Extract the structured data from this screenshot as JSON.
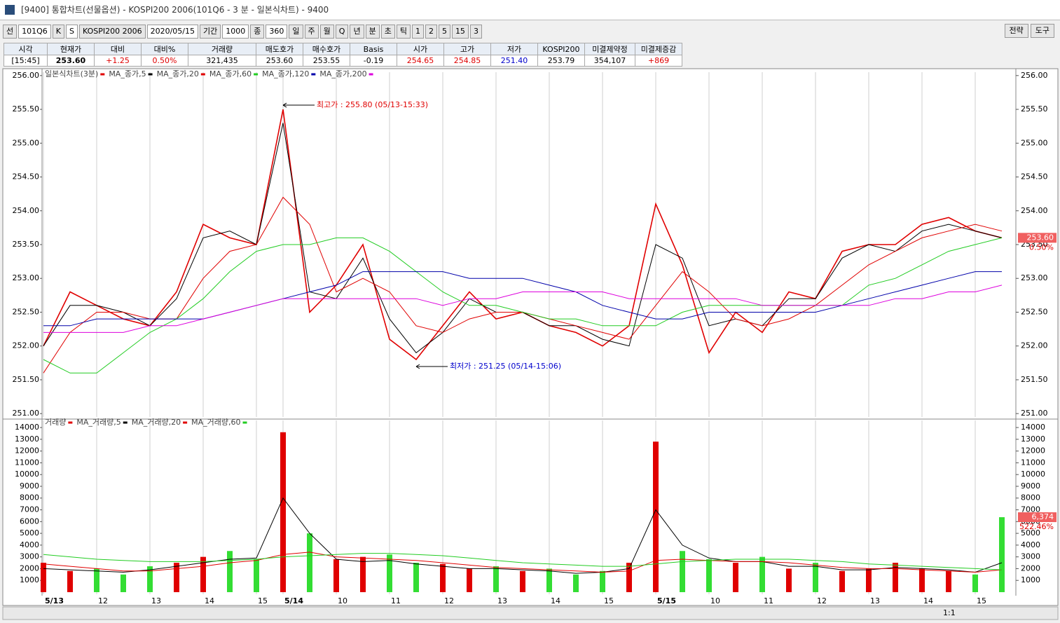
{
  "window_title": "[9400] 통합차트(선물옵션) - KOSPI200 2006(101Q6 - 3 분 - 일본식차트) - 9400",
  "toolbar": {
    "items": [
      "선",
      "101Q6",
      "K",
      "S",
      "KOSPI200 2006",
      "2020/05/15",
      "기간",
      "1000",
      "종",
      "360"
    ],
    "periods": [
      "일",
      "주",
      "월",
      "Q",
      "년",
      "분",
      "초",
      "틱",
      "1",
      "2",
      "5",
      "15",
      "3"
    ],
    "right": [
      "전략",
      "도구"
    ]
  },
  "quote": {
    "headers": [
      "시각",
      "현재가",
      "대비",
      "대비%",
      "거래량",
      "매도호가",
      "매수호가",
      "Basis",
      "시가",
      "고가",
      "저가",
      "KOSPI200",
      "미결제약정",
      "미결제증감"
    ],
    "values": [
      "[15:45]",
      "253.60",
      "+1.25",
      "0.50%",
      "321,435",
      "253.60",
      "253.55",
      "-0.19",
      "254.65",
      "254.85",
      "251.40",
      "253.79",
      "354,107",
      "+869"
    ]
  },
  "footer": {
    "zoom": "1:1"
  },
  "chart_data": [
    {
      "type": "line",
      "ylim": [
        250.95,
        256.05
      ],
      "yticks": [
        {
          "value": 251,
          "label": "251.00"
        },
        {
          "value": 251.5,
          "label": "251.50"
        },
        {
          "value": 252,
          "label": "252.00"
        },
        {
          "value": 252.5,
          "label": "252.50"
        },
        {
          "value": 253,
          "label": "253.00"
        },
        {
          "value": 253.5,
          "label": "253.50"
        },
        {
          "value": 254,
          "label": "254.00"
        },
        {
          "value": 254.5,
          "label": "254.50"
        },
        {
          "value": 255,
          "label": "255.00"
        },
        {
          "value": 255.5,
          "label": "255.50"
        },
        {
          "value": 256,
          "label": "256.00"
        }
      ],
      "series": [
        {
          "name": "일본식차트(3분)",
          "color": "#e00000",
          "values": [
            252.0,
            252.8,
            252.6,
            252.4,
            252.3,
            252.8,
            253.8,
            253.6,
            253.5,
            255.5,
            252.5,
            252.9,
            253.5,
            252.1,
            251.8,
            252.3,
            252.8,
            252.4,
            252.5,
            252.3,
            252.2,
            252.0,
            252.3,
            254.1,
            253.2,
            251.9,
            252.5,
            252.2,
            252.8,
            252.7,
            253.4,
            253.5,
            253.5,
            253.8,
            253.9,
            253.7,
            253.6
          ]
        },
        {
          "name": "MA_종가,5",
          "color": "#000000",
          "values": [
            252.0,
            252.6,
            252.6,
            252.5,
            252.3,
            252.7,
            253.6,
            253.7,
            253.5,
            255.3,
            252.8,
            252.7,
            253.3,
            252.4,
            251.9,
            252.2,
            252.7,
            252.5,
            252.5,
            252.3,
            252.3,
            252.1,
            252.0,
            253.5,
            253.3,
            252.3,
            252.4,
            252.3,
            252.7,
            252.7,
            253.3,
            253.5,
            253.4,
            253.7,
            253.8,
            253.7,
            253.6
          ]
        },
        {
          "name": "MA_종가,20",
          "color": "#e00000",
          "values": [
            251.6,
            252.2,
            252.5,
            252.5,
            252.4,
            252.4,
            253.0,
            253.4,
            253.5,
            254.2,
            253.8,
            252.8,
            253.0,
            252.8,
            252.3,
            252.2,
            252.4,
            252.5,
            252.5,
            252.4,
            252.3,
            252.2,
            252.1,
            252.6,
            253.1,
            252.8,
            252.4,
            252.3,
            252.4,
            252.6,
            252.9,
            253.2,
            253.4,
            253.6,
            253.7,
            253.8,
            253.7
          ]
        },
        {
          "name": "MA_종가,60",
          "color": "#22cc22",
          "values": [
            251.8,
            251.6,
            251.6,
            251.9,
            252.2,
            252.4,
            252.7,
            253.1,
            253.4,
            253.5,
            253.5,
            253.6,
            253.6,
            253.4,
            253.1,
            252.8,
            252.6,
            252.6,
            252.5,
            252.4,
            252.4,
            252.3,
            252.3,
            252.3,
            252.5,
            252.6,
            252.6,
            252.6,
            252.6,
            252.6,
            252.6,
            252.9,
            253.0,
            253.2,
            253.4,
            253.5,
            253.6
          ]
        },
        {
          "name": "MA_종가,120",
          "color": "#0000aa",
          "values": [
            252.3,
            252.3,
            252.4,
            252.4,
            252.4,
            252.4,
            252.4,
            252.5,
            252.6,
            252.7,
            252.8,
            252.9,
            253.1,
            253.1,
            253.1,
            253.1,
            253.0,
            253.0,
            253.0,
            252.9,
            252.8,
            252.6,
            252.5,
            252.4,
            252.4,
            252.5,
            252.5,
            252.5,
            252.5,
            252.5,
            252.6,
            252.7,
            252.8,
            252.9,
            253.0,
            253.1,
            253.1
          ]
        },
        {
          "name": "MA_종가,200",
          "color": "#dd00dd",
          "values": [
            252.2,
            252.2,
            252.2,
            252.2,
            252.3,
            252.3,
            252.4,
            252.5,
            252.6,
            252.7,
            252.7,
            252.7,
            252.7,
            252.7,
            252.7,
            252.6,
            252.7,
            252.7,
            252.8,
            252.8,
            252.8,
            252.8,
            252.7,
            252.7,
            252.7,
            252.7,
            252.7,
            252.6,
            252.6,
            252.6,
            252.6,
            252.6,
            252.7,
            252.7,
            252.8,
            252.8,
            252.9
          ]
        }
      ],
      "annotations": [
        {
          "text": "최고가 : 255.80 (05/13-15:33)",
          "color": "#e00000",
          "at": "max"
        },
        {
          "text": "최저가 : 251.25 (05/14-15:06)",
          "color": "#0000cc",
          "at": "min"
        }
      ],
      "last": {
        "value": 253.6,
        "label": "253.60",
        "change": "0.50%"
      }
    },
    {
      "type": "bar",
      "ylim": [
        -180,
        14600
      ],
      "yticks": [
        1000,
        2000,
        3000,
        4000,
        5000,
        6000,
        7000,
        8000,
        9000,
        10000,
        11000,
        12000,
        13000,
        14000
      ],
      "categories": [
        "5/13",
        null,
        "12",
        null,
        "13",
        null,
        "14",
        null,
        "15",
        "5/14",
        null,
        "10",
        null,
        "11",
        null,
        "12",
        null,
        "13",
        null,
        "14",
        null,
        "15",
        null,
        "5/15",
        null,
        "10",
        null,
        "11",
        null,
        "12",
        null,
        "13",
        null,
        "14",
        null,
        "15",
        null
      ],
      "colors": [
        "#e00000",
        "#33dd33"
      ],
      "series": [
        {
          "name": "거래량",
          "values": [
            2500,
            1800,
            2000,
            1500,
            2200,
            2500,
            3000,
            3500,
            2800,
            13600,
            5000,
            2800,
            3000,
            3200,
            2500,
            2400,
            2000,
            2200,
            1800,
            2000,
            1500,
            1800,
            2500,
            12800,
            3500,
            2800,
            2500,
            3000,
            2000,
            2500,
            1800,
            2000,
            2500,
            2000,
            1800,
            1500,
            6374
          ]
        },
        {
          "name": "MA_거래량,5",
          "color": "#000000",
          "values": [
            2000,
            1900,
            1800,
            1700,
            1900,
            2200,
            2500,
            2800,
            2900,
            8000,
            5000,
            2800,
            2600,
            2700,
            2400,
            2200,
            2000,
            2000,
            1900,
            1800,
            1600,
            1700,
            2000,
            7000,
            4000,
            2900,
            2600,
            2600,
            2200,
            2200,
            1900,
            1900,
            2100,
            2000,
            1900,
            1700,
            2500
          ]
        },
        {
          "name": "MA_거래량,20",
          "color": "#e00000",
          "values": [
            2400,
            2200,
            2000,
            1800,
            1800,
            2000,
            2200,
            2500,
            2700,
            3200,
            3400,
            3000,
            2900,
            2800,
            2700,
            2500,
            2300,
            2100,
            2000,
            1900,
            1800,
            1700,
            1800,
            2700,
            2800,
            2700,
            2600,
            2600,
            2500,
            2300,
            2100,
            2000,
            2000,
            1900,
            1800,
            1700,
            1900
          ]
        },
        {
          "name": "MA_거래량,60",
          "color": "#22cc22",
          "values": [
            3200,
            3000,
            2800,
            2700,
            2600,
            2600,
            2600,
            2700,
            2800,
            3000,
            3100,
            3200,
            3300,
            3300,
            3200,
            3100,
            2900,
            2700,
            2500,
            2400,
            2300,
            2200,
            2200,
            2400,
            2600,
            2700,
            2800,
            2800,
            2800,
            2700,
            2600,
            2400,
            2300,
            2200,
            2100,
            2000,
            1900
          ]
        }
      ],
      "last": {
        "value": 6374,
        "label": "6,374",
        "change": "522.46%"
      }
    }
  ]
}
